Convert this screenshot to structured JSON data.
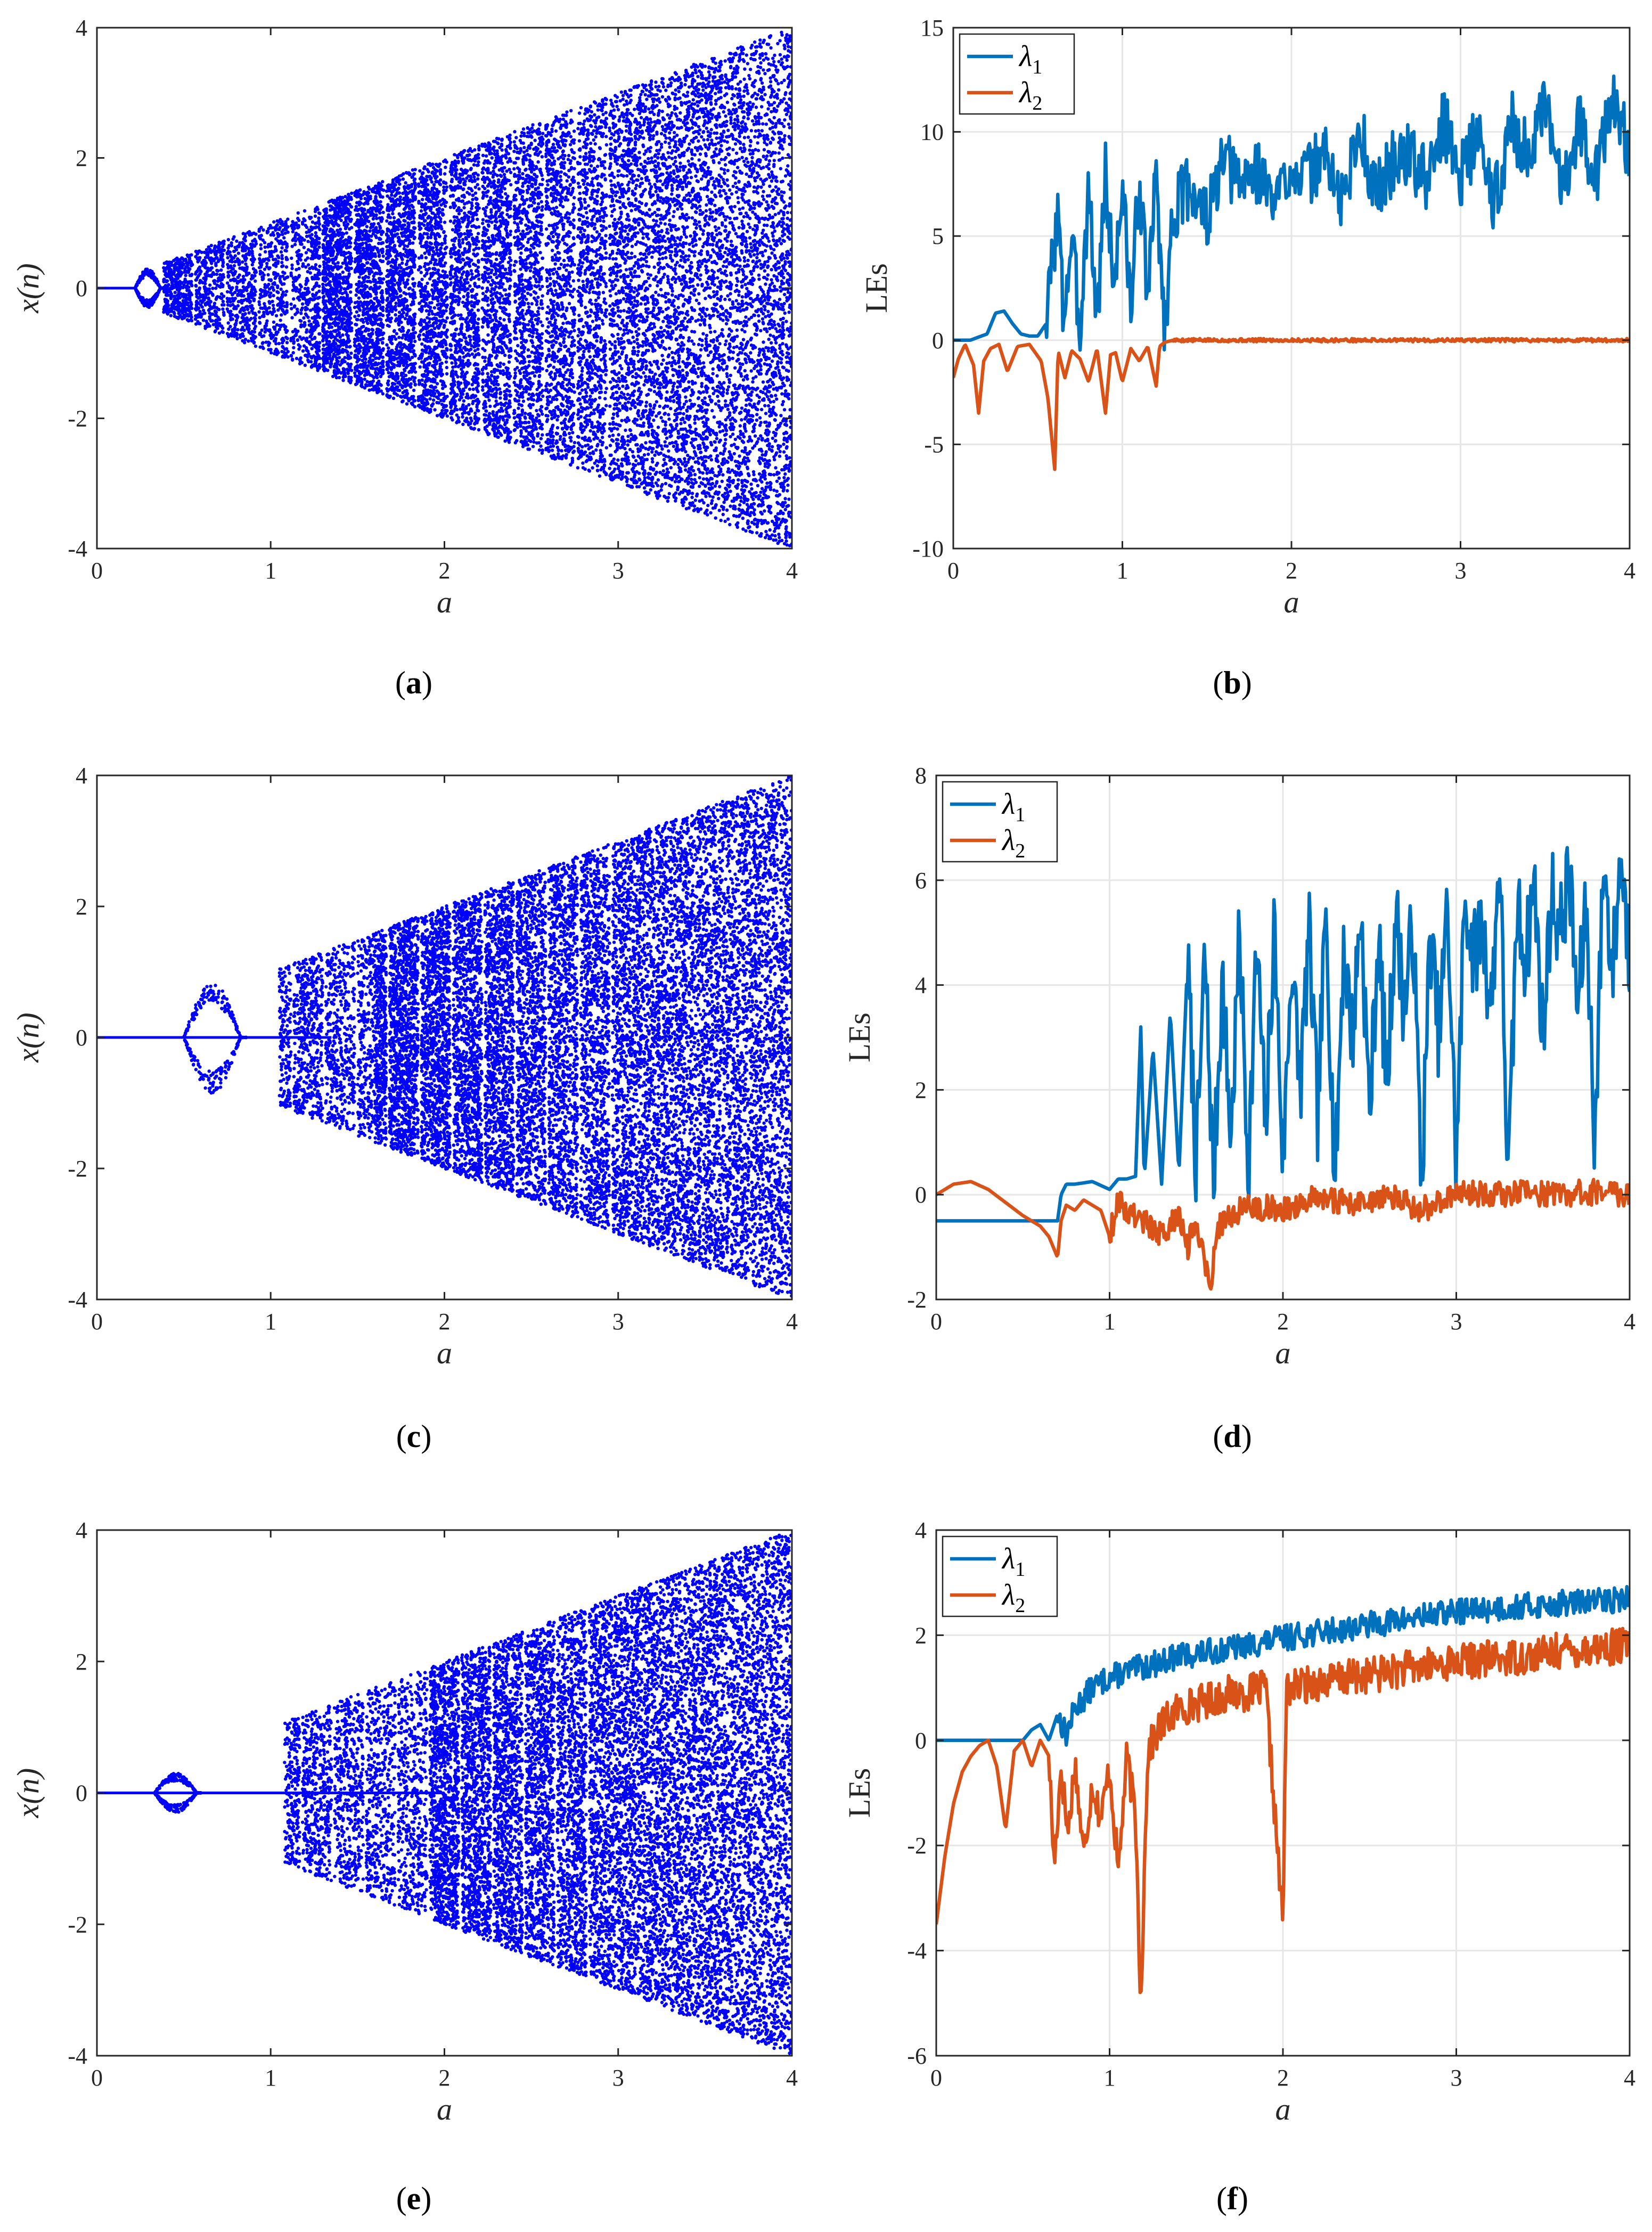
{
  "colors": {
    "scatter": "#0000ff",
    "lambda1": "#0072bd",
    "lambda2": "#d95319",
    "grid": "#e6e6e6",
    "axis": "#262626"
  },
  "chart_data": [
    {
      "id": "a",
      "type": "scatter",
      "subtype": "bifurcation",
      "caption": "a",
      "xlabel": "a",
      "ylabel": "x(n)",
      "xlim": [
        0,
        4
      ],
      "ylim": [
        -4,
        4
      ],
      "xticks": [
        "0",
        "1",
        "2",
        "3",
        "4"
      ],
      "yticks": [
        "-4",
        "-2",
        "0",
        "2",
        "4"
      ],
      "grid": false,
      "envelope": "x in [-a, a]",
      "fixed_point_x": 0,
      "fixed_point_range": [
        0,
        0.22
      ],
      "period_window": [
        [
          0.22,
          0.38,
          0.3
        ]
      ],
      "chaos_start": 0.38,
      "sparse_until": 1.25,
      "seed": 11
    },
    {
      "id": "b",
      "type": "line",
      "caption": "b",
      "xlabel": "a",
      "ylabel": "LEs",
      "xlim": [
        0,
        4
      ],
      "ylim": [
        -10,
        15
      ],
      "xticks": [
        "0",
        "1",
        "2",
        "3",
        "4"
      ],
      "yticks": [
        "-10",
        "-5",
        "0",
        "5",
        "10",
        "15"
      ],
      "grid": true,
      "legend": "top-left",
      "series": [
        {
          "name": "λ1",
          "label": "λ",
          "sub": "1",
          "a": [
            0.0,
            0.1,
            0.2,
            0.25,
            0.3,
            0.35,
            0.4,
            0.45,
            0.5,
            0.55,
            0.58,
            0.62,
            0.65,
            0.7,
            0.75,
            0.8,
            0.85,
            0.9,
            0.95,
            1.0,
            1.05,
            1.1,
            1.15,
            1.2,
            1.25,
            1.3,
            1.4,
            1.5,
            1.6,
            1.7,
            1.8,
            1.9,
            2.0,
            2.1,
            2.2,
            2.3,
            2.4,
            2.5,
            2.6,
            2.7,
            2.8,
            2.9,
            3.0,
            3.1,
            3.2,
            3.3,
            3.4,
            3.5,
            3.6,
            3.7,
            3.8,
            3.9,
            4.0
          ],
          "values": [
            0,
            0,
            0.3,
            1.3,
            1.4,
            0.8,
            0.3,
            0.2,
            0.2,
            0.8,
            3.5,
            6.2,
            1.2,
            4.8,
            0.5,
            7.5,
            0.8,
            8.0,
            2.5,
            7.5,
            1.5,
            7.8,
            2.0,
            8.0,
            0.4,
            6.2,
            7.5,
            5.8,
            8.5,
            7.5,
            8.2,
            6.5,
            8.5,
            7.8,
            9.0,
            6.5,
            10.2,
            7.0,
            8.5,
            9.0,
            7.5,
            10.5,
            8.0,
            9.8,
            6.5,
            10.5,
            8.8,
            11.0,
            7.5,
            10.5,
            8.0,
            11.5,
            9.0
          ],
          "noise": 1.6,
          "noise_start": 0.55,
          "seed": 3
        },
        {
          "name": "λ2",
          "label": "λ",
          "sub": "2",
          "a": [
            0.0,
            0.03,
            0.07,
            0.12,
            0.15,
            0.18,
            0.22,
            0.27,
            0.32,
            0.38,
            0.45,
            0.52,
            0.56,
            0.6,
            0.62,
            0.66,
            0.7,
            0.75,
            0.8,
            0.85,
            0.9,
            0.93,
            0.96,
            1.0,
            1.05,
            1.1,
            1.15,
            1.2,
            1.22,
            1.25,
            1.3,
            4.0
          ],
          "values": [
            -1.8,
            -0.9,
            -0.2,
            -1.2,
            -3.5,
            -1.0,
            -0.4,
            -0.2,
            -1.5,
            -0.3,
            -0.2,
            -1.0,
            -2.8,
            -6.2,
            -0.5,
            -1.8,
            -0.5,
            -0.9,
            -2.0,
            -0.4,
            -3.5,
            -0.7,
            -0.6,
            -2.0,
            -0.4,
            -1.0,
            -0.3,
            -2.2,
            -0.3,
            -0.1,
            0,
            0
          ],
          "noise": 0.08,
          "noise_start": 1.3,
          "seed": 5
        }
      ]
    },
    {
      "id": "c",
      "type": "scatter",
      "subtype": "bifurcation",
      "caption": "c",
      "xlabel": "a",
      "ylabel": "x(n)",
      "xlim": [
        0,
        4
      ],
      "ylim": [
        -4,
        4
      ],
      "xticks": [
        "0",
        "1",
        "2",
        "3",
        "4"
      ],
      "yticks": [
        "-4",
        "-2",
        "0",
        "2",
        "4"
      ],
      "grid": false,
      "envelope": "x in [-a, a]",
      "fixed_point_x": 0,
      "fixed_point_range": [
        0,
        1.35
      ],
      "period_window": [
        [
          0.5,
          0.86,
          0.85
        ]
      ],
      "chaos_start": 1.05,
      "sparse_until": 1.6,
      "seed": 23
    },
    {
      "id": "d",
      "type": "line",
      "caption": "d",
      "xlabel": "a",
      "ylabel": "LEs",
      "xlim": [
        0,
        4
      ],
      "ylim": [
        -2,
        8
      ],
      "xticks": [
        "0",
        "1",
        "2",
        "3",
        "4"
      ],
      "yticks": [
        "-2",
        "0",
        "2",
        "4",
        "6",
        "8"
      ],
      "grid": true,
      "legend": "top-left",
      "series": [
        {
          "name": "λ1",
          "label": "λ",
          "sub": "1",
          "a": [
            0.7,
            0.72,
            0.75,
            0.8,
            0.9,
            1.0,
            1.05,
            1.1,
            1.15,
            1.18,
            1.2,
            1.25,
            1.3,
            1.35,
            1.4,
            1.45,
            1.5,
            1.55,
            1.6,
            1.65,
            1.7,
            1.75,
            1.8,
            1.85,
            1.9,
            1.95,
            2.0,
            2.05,
            2.1,
            2.15,
            2.2,
            2.25,
            2.3,
            2.35,
            2.4,
            2.45,
            2.5,
            2.55,
            2.6,
            2.65,
            2.7,
            2.75,
            2.8,
            2.85,
            2.9,
            2.95,
            3.0,
            3.05,
            3.1,
            3.15,
            3.2,
            3.25,
            3.3,
            3.35,
            3.4,
            3.45,
            3.5,
            3.55,
            3.6,
            3.65,
            3.7,
            3.75,
            3.8,
            3.85,
            3.9,
            3.95,
            4.0
          ],
          "values": [
            -0.5,
            0.0,
            0.2,
            0.2,
            0.25,
            0.1,
            0.3,
            0.3,
            0.35,
            3.2,
            0.3,
            2.8,
            0.2,
            3.5,
            0.4,
            4.5,
            0.5,
            4.6,
            0.2,
            4.2,
            1.0,
            5.0,
            0.5,
            4.8,
            1.2,
            5.2,
            0.6,
            4.5,
            2.0,
            5.0,
            1.5,
            5.5,
            0.1,
            4.8,
            3.0,
            5.5,
            1.5,
            5.0,
            2.0,
            5.5,
            3.5,
            5.2,
            0.2,
            5.0,
            3.0,
            5.5,
            0.5,
            5.8,
            4.5,
            5.2,
            3.5,
            6.5,
            0.1,
            5.5,
            4.5,
            6.0,
            3.0,
            5.8,
            5.0,
            6.2,
            3.5,
            5.5,
            1.0,
            6.5,
            4.2,
            6.5,
            4.5
          ],
          "noise": 0.9,
          "noise_start": 1.45,
          "seed": 7
        },
        {
          "name": "λ2",
          "label": "λ",
          "sub": "2",
          "a": [
            0.0,
            0.1,
            0.2,
            0.3,
            0.4,
            0.5,
            0.6,
            0.65,
            0.7,
            0.72,
            0.75,
            0.8,
            0.85,
            0.9,
            0.95,
            1.0,
            1.05,
            1.1,
            1.2,
            1.3,
            1.4,
            1.45,
            1.5,
            1.55,
            1.58,
            1.62,
            1.7,
            1.8,
            2.0,
            2.2,
            2.4,
            2.6,
            2.8,
            3.0,
            3.2,
            3.4,
            3.6,
            3.8,
            4.0
          ],
          "values": [
            0.0,
            0.2,
            0.25,
            0.1,
            -0.15,
            -0.4,
            -0.6,
            -0.8,
            -1.2,
            -0.5,
            -0.2,
            -0.3,
            -0.1,
            -0.2,
            -0.3,
            -0.8,
            -0.1,
            -0.3,
            -0.5,
            -0.8,
            -0.4,
            -1.0,
            -0.5,
            -1.2,
            -1.9,
            -0.6,
            -0.4,
            -0.2,
            -0.3,
            0.0,
            -0.2,
            0.0,
            -0.3,
            0.05,
            0.0,
            0.05,
            0.0,
            0.05,
            0.02
          ],
          "noise": 0.25,
          "noise_start": 1.0,
          "seed": 9
        }
      ]
    },
    {
      "id": "e",
      "type": "scatter",
      "subtype": "bifurcation",
      "caption": "e",
      "xlabel": "a",
      "ylabel": "x(n)",
      "xlim": [
        0,
        4
      ],
      "ylim": [
        -4,
        4
      ],
      "xticks": [
        "0",
        "1",
        "2",
        "3",
        "4"
      ],
      "yticks": [
        "-4",
        "-2",
        "0",
        "2",
        "4"
      ],
      "grid": false,
      "envelope": "x in [-a, a]",
      "fixed_point_x": 0,
      "fixed_point_range": [
        0,
        2.0
      ],
      "period_window": [
        [
          0.33,
          0.6,
          0.3
        ]
      ],
      "chaos_start": 1.08,
      "sparse_until": 1.9,
      "seed": 37
    },
    {
      "id": "f",
      "type": "line",
      "caption": "f",
      "xlabel": "a",
      "ylabel": "LEs",
      "xlim": [
        0,
        4
      ],
      "ylim": [
        -6,
        4
      ],
      "xticks": [
        "0",
        "1",
        "2",
        "3",
        "4"
      ],
      "yticks": [
        "-6",
        "-4",
        "-2",
        "0",
        "2",
        "4"
      ],
      "grid": true,
      "legend": "top-left",
      "series": [
        {
          "name": "λ1",
          "label": "λ",
          "sub": "1",
          "a": [
            0.0,
            0.3,
            0.5,
            0.55,
            0.6,
            0.65,
            0.7,
            0.75,
            0.8,
            0.9,
            1.0,
            1.2,
            1.4,
            1.6,
            1.8,
            2.0,
            2.2,
            2.4,
            2.6,
            2.8,
            3.0,
            3.2,
            3.4,
            3.6,
            3.8,
            4.0
          ],
          "values": [
            0,
            0,
            0,
            0.2,
            0.3,
            0.0,
            0.5,
            0.1,
            0.6,
            1.0,
            1.2,
            1.4,
            1.6,
            1.7,
            1.8,
            1.95,
            2.05,
            2.15,
            2.25,
            2.35,
            2.45,
            2.5,
            2.55,
            2.6,
            2.65,
            2.7
          ],
          "noise": 0.25,
          "noise_start": 0.7,
          "seed": 13
        },
        {
          "name": "λ2",
          "label": "λ",
          "sub": "2",
          "a": [
            0.0,
            0.05,
            0.1,
            0.15,
            0.2,
            0.25,
            0.3,
            0.35,
            0.4,
            0.45,
            0.5,
            0.55,
            0.6,
            0.65,
            0.68,
            0.72,
            0.76,
            0.8,
            0.85,
            0.9,
            0.95,
            1.0,
            1.05,
            1.1,
            1.15,
            1.18,
            1.22,
            1.3,
            1.4,
            1.5,
            1.6,
            1.7,
            1.8,
            1.9,
            2.0,
            2.02,
            2.05,
            2.2,
            2.4,
            2.6,
            2.8,
            3.0,
            3.2,
            3.4,
            3.6,
            3.8,
            4.0
          ],
          "values": [
            -3.5,
            -2.2,
            -1.2,
            -0.6,
            -0.3,
            -0.1,
            0.0,
            -0.5,
            -1.7,
            -0.2,
            0.0,
            -0.5,
            0.0,
            -0.3,
            -2.4,
            -0.5,
            -1.8,
            -0.4,
            -2.2,
            -0.8,
            -1.5,
            -0.5,
            -2.5,
            -0.3,
            -1.5,
            -5.0,
            -0.2,
            0.3,
            0.6,
            0.7,
            0.8,
            0.9,
            0.9,
            1.0,
            -3.5,
            1.0,
            1.0,
            1.1,
            1.2,
            1.3,
            1.4,
            1.5,
            1.55,
            1.6,
            1.7,
            1.75,
            1.8
          ],
          "noise": 0.35,
          "noise_start": 0.65,
          "seed": 17
        }
      ]
    }
  ]
}
